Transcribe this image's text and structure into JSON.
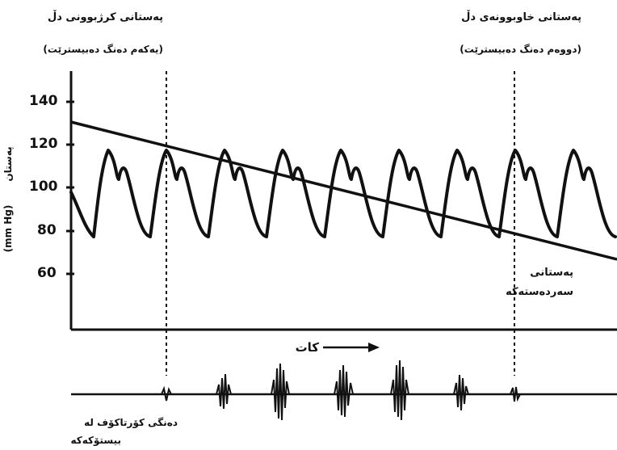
{
  "labels": {
    "systolic_heard": "پەستانی کرژبوونی دڵ",
    "systolic_heard_sub": "(یەکەم دەنگ دەبیسترێت)",
    "diastolic_heard": "پەستانی خاوبوونەی دڵ",
    "diastolic_heard_sub": "(دووەم دەنگ دەبیسترێت)",
    "y_axis_main": "پەستان",
    "y_axis_unit": "(mm Hg)",
    "cuff_line_1": "پەستانی",
    "cuff_line_2": "سەردەستەکە",
    "time": "کات",
    "sounds_line_1": "دەنگی کۆرتاکۆف لە",
    "sounds_line_2": "بیستۆکەکە"
  },
  "y_ticks": [
    "140",
    "120",
    "100",
    "80",
    "60"
  ],
  "colors": {
    "ink": "#111111",
    "background": "#ffffff"
  }
}
